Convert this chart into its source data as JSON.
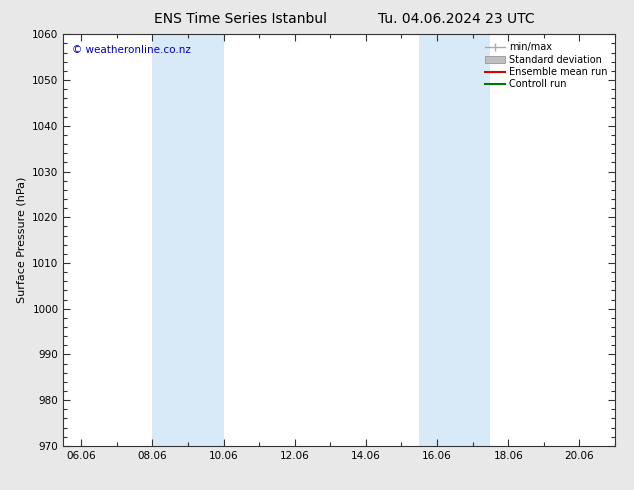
{
  "title_left": "ENS Time Series Istanbul",
  "title_right": "Tu. 04.06.2024 23 UTC",
  "ylabel": "Surface Pressure (hPa)",
  "ylim": [
    970,
    1060
  ],
  "yticks": [
    970,
    980,
    990,
    1000,
    1010,
    1020,
    1030,
    1040,
    1050,
    1060
  ],
  "xlim_start": 5.5,
  "xlim_end": 21.0,
  "xtick_labels": [
    "06.06",
    "08.06",
    "10.06",
    "12.06",
    "14.06",
    "16.06",
    "18.06",
    "20.06"
  ],
  "xtick_positions": [
    6.0,
    8.0,
    10.0,
    12.0,
    14.0,
    16.0,
    18.0,
    20.0
  ],
  "shaded_bands": [
    {
      "xmin": 8.0,
      "xmax": 10.0
    },
    {
      "xmin": 15.5,
      "xmax": 17.5
    }
  ],
  "shade_color": "#d8eaf7",
  "copyright_text": "© weatheronline.co.nz",
  "copyright_color": "#0000bb",
  "copyright_fontsize": 7.5,
  "legend_entries": [
    {
      "label": "min/max",
      "color": "#aaaaaa",
      "lw": 1.0,
      "type": "minmax"
    },
    {
      "label": "Standard deviation",
      "color": "#c0c0c0",
      "lw": 5,
      "type": "fill"
    },
    {
      "label": "Ensemble mean run",
      "color": "#dd0000",
      "lw": 1.5,
      "type": "line"
    },
    {
      "label": "Controll run",
      "color": "#007700",
      "lw": 1.5,
      "type": "line"
    }
  ],
  "bg_color": "#e8e8e8",
  "plot_bg_color": "#ffffff",
  "border_color": "#333333",
  "tick_color": "#333333",
  "title_fontsize": 10,
  "tick_fontsize": 7.5,
  "ylabel_fontsize": 8
}
